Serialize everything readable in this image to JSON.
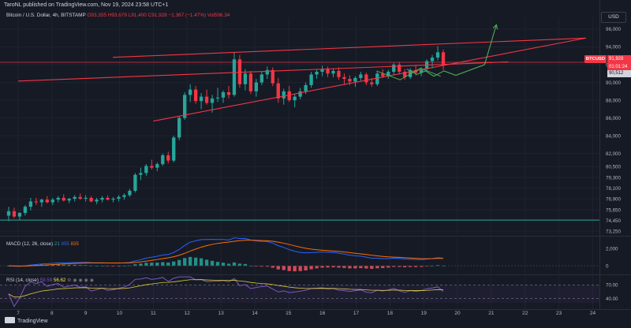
{
  "header": {
    "publish_line": "TaroNL published on TradingView.com, Nov 19, 2024 23:58 UTC+1",
    "symbol": "Bitcoin / U.S. Dollar, 4h, BITSTAMP",
    "open": "O93,355",
    "high": "H93,679",
    "low": "L91,400",
    "close": "C91,928",
    "change": "−1,367 (−1.47%)",
    "volume": "Vol596.34"
  },
  "price_axis": {
    "currency": "USD",
    "symbol_tag": "BTCUSD",
    "last_price": "91,928",
    "countdown": "01:01:24",
    "low_marker": "90,512"
  },
  "indicators": {
    "macd": {
      "label": "MACD (12, 26, close)",
      "v1": "21",
      "v2": "855",
      "v3": "835"
    },
    "rsi": {
      "label": "RSI (14, close)",
      "v1": "59.59",
      "v2": "56.62"
    }
  },
  "footer": {
    "brand": "TradingView"
  },
  "colors": {
    "up": "#26a69a",
    "down": "#f23645",
    "wedge": "#f23645",
    "projection": "#4caf50",
    "macd": "#2962ff",
    "signal": "#ff6d00",
    "rsi": "#7e57c2"
  },
  "chart_data": [
    {
      "type": "candlestick",
      "timeframe": "4h",
      "x_tick_labels": [
        "7",
        "8",
        "9",
        "10",
        "11",
        "12",
        "13",
        "14",
        "15",
        "16",
        "17",
        "18",
        "19",
        "20",
        "21",
        "22",
        "23",
        "24"
      ],
      "y_tick_labels": [
        "73,250",
        "74,450",
        "75,650",
        "76,900",
        "78,100",
        "79,300",
        "80,500",
        "82,000",
        "84,000",
        "86,000",
        "88,000",
        "90,000",
        "92,000",
        "94,000",
        "96,000"
      ],
      "y_ticks": [
        73250,
        74450,
        75650,
        76900,
        78100,
        79300,
        80500,
        82000,
        84000,
        86000,
        88000,
        90000,
        92000,
        94000,
        96000
      ],
      "ylim": [
        73000,
        96800
      ],
      "ohlc": [
        [
          75000,
          76000,
          74400,
          75500
        ],
        [
          75500,
          75900,
          74700,
          74900
        ],
        [
          74900,
          75400,
          74500,
          75300
        ],
        [
          75300,
          76200,
          75000,
          76000
        ],
        [
          76000,
          77000,
          75600,
          76600
        ],
        [
          76600,
          77000,
          76200,
          76500
        ],
        [
          76500,
          76900,
          76000,
          76800
        ],
        [
          76800,
          77200,
          76400,
          76500
        ],
        [
          76500,
          77000,
          76200,
          76800
        ],
        [
          76800,
          77200,
          76500,
          77000
        ],
        [
          77000,
          77400,
          76600,
          76700
        ],
        [
          76700,
          77000,
          76400,
          76900
        ],
        [
          76900,
          77300,
          76600,
          77100
        ],
        [
          77100,
          77500,
          76800,
          76900
        ],
        [
          76900,
          77300,
          76600,
          77000
        ],
        [
          77000,
          77200,
          76500,
          76600
        ],
        [
          76600,
          77000,
          76300,
          76800
        ],
        [
          76800,
          77200,
          76500,
          77000
        ],
        [
          77000,
          77300,
          76700,
          76800
        ],
        [
          76800,
          77100,
          76500,
          76900
        ],
        [
          76900,
          77300,
          76600,
          77100
        ],
        [
          77100,
          77500,
          76800,
          77300
        ],
        [
          77300,
          78000,
          77100,
          77800
        ],
        [
          77800,
          79800,
          77600,
          79600
        ],
        [
          79600,
          80400,
          79000,
          79800
        ],
        [
          79800,
          80800,
          79500,
          80600
        ],
        [
          80600,
          81300,
          80200,
          80400
        ],
        [
          80400,
          81000,
          80000,
          80800
        ],
        [
          80800,
          82000,
          80600,
          81800
        ],
        [
          81800,
          82200,
          80900,
          81200
        ],
        [
          81200,
          84000,
          81000,
          83800
        ],
        [
          83800,
          86200,
          83500,
          86000
        ],
        [
          86000,
          88900,
          85800,
          88600
        ],
        [
          88600,
          89800,
          87800,
          89200
        ],
        [
          89200,
          89600,
          87600,
          87900
        ],
        [
          87900,
          88800,
          87000,
          88400
        ],
        [
          88400,
          89200,
          87500,
          87700
        ],
        [
          87700,
          88600,
          86600,
          88200
        ],
        [
          88200,
          89400,
          87800,
          88300
        ],
        [
          88300,
          89100,
          87700,
          88900
        ],
        [
          88900,
          89600,
          88200,
          88600
        ],
        [
          88600,
          93400,
          88400,
          92600
        ],
        [
          92600,
          93100,
          89400,
          89800
        ],
        [
          89800,
          91500,
          89100,
          91000
        ],
        [
          91000,
          91300,
          88700,
          89000
        ],
        [
          89000,
          90400,
          88400,
          90000
        ],
        [
          90000,
          91200,
          89700,
          90900
        ],
        [
          90900,
          91800,
          90400,
          91400
        ],
        [
          91400,
          91700,
          89600,
          89900
        ],
        [
          89900,
          90500,
          87700,
          88200
        ],
        [
          88200,
          89300,
          87500,
          89000
        ],
        [
          89000,
          89600,
          87800,
          88000
        ],
        [
          88000,
          88700,
          87200,
          88400
        ],
        [
          88400,
          89400,
          88100,
          89000
        ],
        [
          89000,
          90000,
          88700,
          89700
        ],
        [
          89700,
          91200,
          89400,
          90900
        ],
        [
          90900,
          91500,
          90400,
          91200
        ],
        [
          91200,
          91900,
          90700,
          91500
        ],
        [
          91500,
          91800,
          90600,
          91000
        ],
        [
          91000,
          91600,
          90600,
          91300
        ],
        [
          91300,
          91700,
          90300,
          90600
        ],
        [
          90600,
          91000,
          89800,
          90400
        ],
        [
          90400,
          90800,
          89700,
          90100
        ],
        [
          90100,
          90700,
          89500,
          90500
        ],
        [
          90500,
          91200,
          90200,
          90900
        ],
        [
          90900,
          91100,
          89700,
          90000
        ],
        [
          90000,
          90500,
          89500,
          89800
        ],
        [
          89800,
          91200,
          89600,
          91000
        ],
        [
          91000,
          91500,
          90500,
          90700
        ],
        [
          90700,
          91400,
          90400,
          91200
        ],
        [
          91200,
          92200,
          90900,
          92000
        ],
        [
          92000,
          92300,
          90900,
          91200
        ],
        [
          91200,
          91500,
          90300,
          90600
        ],
        [
          90600,
          91600,
          90400,
          91400
        ],
        [
          91400,
          92000,
          90800,
          91100
        ],
        [
          91100,
          91700,
          90700,
          91500
        ],
        [
          91500,
          92600,
          91300,
          92400
        ],
        [
          92400,
          93100,
          91600,
          92800
        ],
        [
          92800,
          94100,
          92500,
          93400
        ],
        [
          93400,
          93700,
          91400,
          91900
        ]
      ],
      "wedge_upper": [
        [
          7.0,
          90160
        ],
        [
          21.5,
          92320
        ]
      ],
      "wedge_lower": [
        [
          11.0,
          85650
        ],
        [
          23.8,
          95000
        ]
      ],
      "wedge_top": [
        [
          9.8,
          92830
        ],
        [
          23.8,
          95000
        ]
      ],
      "horizontal_support": 74500,
      "horizontal_resistance": 92270,
      "projection_path": [
        [
          11.5,
          91500
        ],
        [
          11.8,
          90900
        ],
        [
          12.05,
          91300
        ],
        [
          12.3,
          90700
        ],
        [
          12.6,
          91300
        ],
        [
          12.95,
          90800
        ],
        [
          13.8,
          92000
        ],
        [
          14.15,
          96500
        ]
      ]
    },
    {
      "type": "line",
      "name": "MACD (12, 26, close)",
      "y_tick_labels": [
        "2,000",
        "0"
      ],
      "y_ticks": [
        2000,
        0
      ],
      "ylim": [
        -800,
        3000
      ]
    },
    {
      "type": "line",
      "name": "RSI (14, close)",
      "y_tick_labels": [
        "70.00",
        "40.00"
      ],
      "y_ticks": [
        70,
        40
      ],
      "ylim": [
        20,
        90
      ]
    }
  ]
}
